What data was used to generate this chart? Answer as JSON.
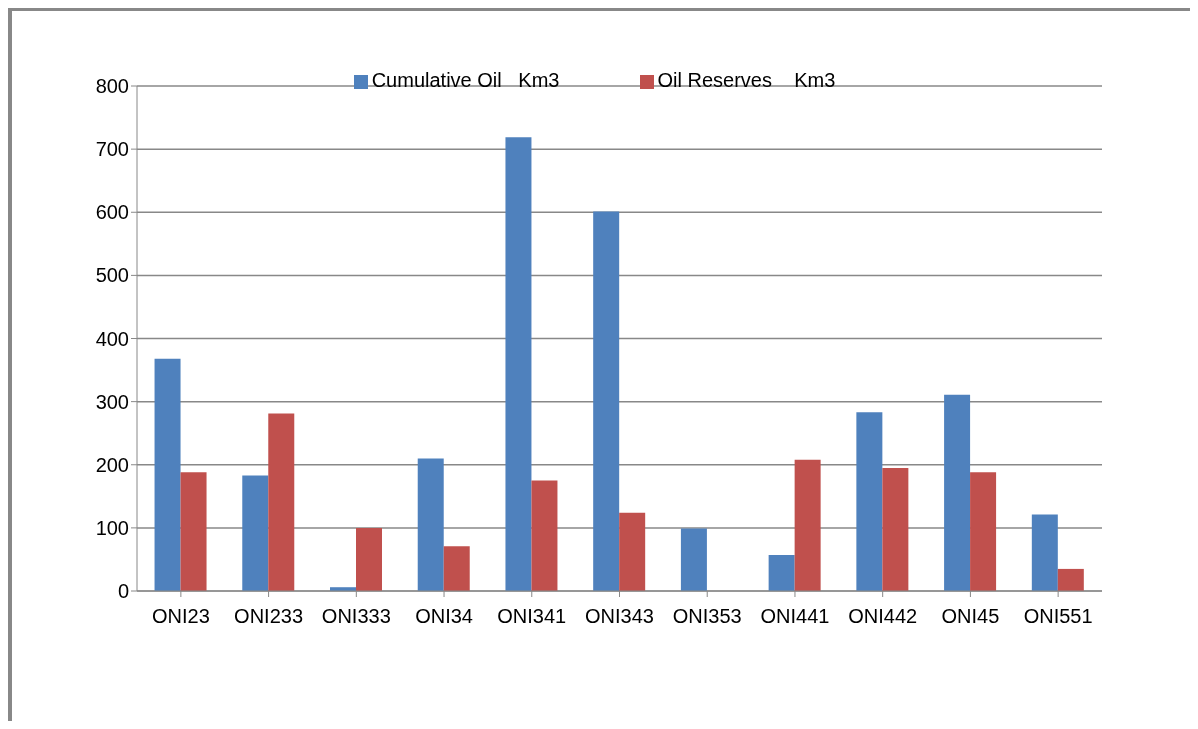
{
  "chart_data": {
    "type": "bar",
    "categories": [
      "ONI23",
      "ONI233",
      "ONI333",
      "ONI34",
      "ONI341",
      "ONI343",
      "ONI353",
      "ONI441",
      "ONI442",
      "ONI45",
      "ONI551"
    ],
    "series": [
      {
        "name": "Cumulative Oil   Km3",
        "color": "#4f81bd",
        "values": [
          368,
          183,
          6,
          210,
          719,
          601,
          99,
          57,
          283,
          311,
          121
        ]
      },
      {
        "name": "Oil Reserves    Km3",
        "color": "#c0504d",
        "values": [
          188,
          281,
          100,
          71,
          175,
          124,
          0,
          208,
          195,
          188,
          35
        ]
      }
    ],
    "ylim": [
      0,
      800
    ],
    "yticks": [
      0,
      100,
      200,
      300,
      400,
      500,
      600,
      700,
      800
    ],
    "grid": "y",
    "legend": "top"
  }
}
